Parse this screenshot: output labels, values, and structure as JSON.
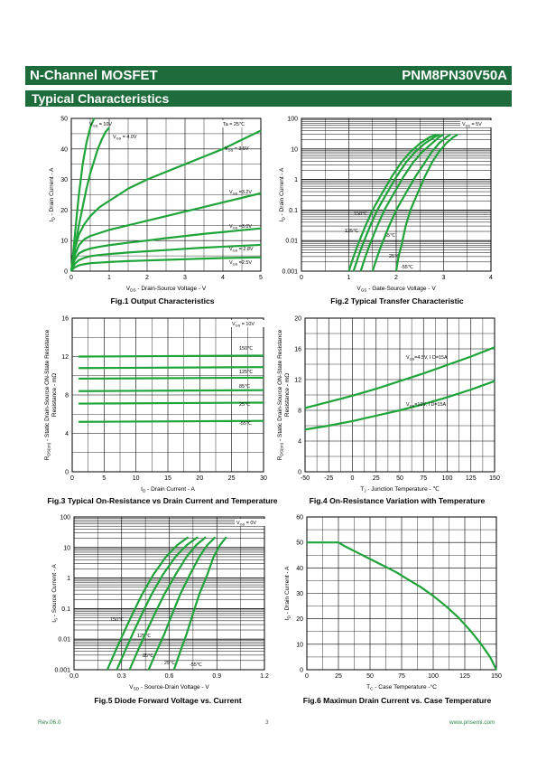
{
  "header": {
    "left": "N-Channel MOSFET",
    "right": "PNM8PN30V50A",
    "section": "Typical Characteristics"
  },
  "footer": {
    "rev": "Rev.06.0",
    "page": "3",
    "url": "www.prisemi.com"
  },
  "colors": {
    "brand": "#1e6b3c",
    "curve": "#1fa43a",
    "footer": "#2f8a4f"
  },
  "chart_data": [
    {
      "id": "fig1",
      "type": "line",
      "caption": "Fig.1 Output Characteristics",
      "xlabel_main": "V",
      "xlabel_sub": "DS",
      "xlabel_rest": " - Drain-Source Voltage - V",
      "ylabel": "I D - Drain Current - A",
      "xlim": [
        0,
        5
      ],
      "ylim": [
        0,
        50
      ],
      "xticks": [
        0,
        1,
        2,
        3,
        4,
        5
      ],
      "yticks": [
        0,
        10,
        20,
        30,
        40,
        50
      ],
      "grid": true,
      "annotations": [
        "Ta = 25℃"
      ],
      "series": [
        {
          "label": "V GS = 10V",
          "x": [
            0,
            0.05,
            0.1,
            0.15,
            0.2,
            0.3,
            0.4,
            0.5,
            0.6
          ],
          "y": [
            0,
            6,
            12.5,
            19,
            25,
            35,
            42,
            47,
            50
          ]
        },
        {
          "label": "V GS = 4.0V",
          "x": [
            0,
            0.1,
            0.2,
            0.3,
            0.4,
            0.5,
            0.6,
            0.7,
            0.8,
            0.9,
            1.0
          ],
          "y": [
            0,
            8,
            15,
            21,
            27,
            32,
            36,
            40,
            43,
            45.5,
            47
          ]
        },
        {
          "label": "V GS = 3.5V",
          "x": [
            0,
            0.05,
            0.1,
            0.2,
            0.35,
            0.5,
            0.75,
            1,
            1.5,
            2,
            2.5,
            3,
            3.5,
            4,
            4.5,
            5
          ],
          "y": [
            0,
            4,
            7.5,
            12,
            15.5,
            18,
            21,
            23,
            27,
            30,
            32.5,
            35,
            37.5,
            40,
            43,
            46
          ]
        },
        {
          "label": "V GS =3.2V",
          "x": [
            0,
            0.05,
            0.1,
            0.2,
            0.35,
            0.5,
            0.75,
            1,
            1.5,
            2,
            2.5,
            3,
            3.5,
            4,
            4.5,
            5
          ],
          "y": [
            0,
            3,
            5.5,
            8.5,
            10.5,
            11.5,
            12.5,
            13.5,
            15,
            16.5,
            18,
            19.5,
            21,
            22.5,
            24,
            25.5
          ]
        },
        {
          "label": "V GS =3.0V",
          "x": [
            0,
            0.05,
            0.1,
            0.2,
            0.35,
            0.5,
            0.75,
            1,
            1.5,
            2,
            2.5,
            3,
            3.5,
            4,
            4.5,
            5
          ],
          "y": [
            0,
            2.5,
            4,
            5.8,
            6.8,
            7.4,
            8,
            8.5,
            9.3,
            10,
            10.8,
            11.5,
            12.2,
            12.8,
            13.4,
            14
          ]
        },
        {
          "label": "V GS = 2.8V",
          "x": [
            0,
            0.05,
            0.1,
            0.2,
            0.35,
            0.5,
            0.75,
            1,
            1.5,
            2,
            2.5,
            3,
            3.5,
            4,
            4.5,
            5
          ],
          "y": [
            0,
            1.5,
            2.5,
            3.6,
            4.4,
            4.9,
            5.3,
            5.6,
            6.1,
            6.5,
            6.9,
            7.3,
            7.7,
            8,
            8.3,
            8.6
          ]
        },
        {
          "label": "V GS =2.5V",
          "x": [
            0,
            0.05,
            0.1,
            0.2,
            0.35,
            0.5,
            0.75,
            1,
            1.5,
            2,
            2.5,
            3,
            3.5,
            4,
            4.5,
            5
          ],
          "y": [
            0,
            0.8,
            1.3,
            1.9,
            2.3,
            2.6,
            2.8,
            3.0,
            3.3,
            3.5,
            3.7,
            3.9,
            4.1,
            4.3,
            4.4,
            4.5
          ]
        }
      ]
    },
    {
      "id": "fig2",
      "type": "line",
      "caption": "Fig.2 Typical Transfer Characteristic",
      "xlabel_main": "V",
      "xlabel_sub": "GS",
      "xlabel_rest": " - Gate-Source Voltage - V",
      "ylabel": "I D - Drain Current - A",
      "xlim": [
        0,
        4
      ],
      "ylim": [
        0.001,
        100
      ],
      "log_y": true,
      "xticks": [
        0,
        1,
        2,
        3,
        4
      ],
      "yticks": [
        0.001,
        0.01,
        0.1,
        1,
        10,
        100
      ],
      "ytick_labels": [
        "0.001",
        "0.01",
        "0.1",
        "1",
        "10",
        "100"
      ],
      "grid": true,
      "annotations": [
        "V DS = 5V"
      ],
      "series": [
        {
          "label": "150℃",
          "x": [
            1.0,
            1.1,
            1.2,
            1.35,
            1.5,
            1.7,
            1.9,
            2.1,
            2.3,
            2.5,
            2.7,
            2.85
          ],
          "y": [
            0.001,
            0.003,
            0.008,
            0.03,
            0.1,
            0.35,
            1.2,
            3.5,
            8,
            15,
            24,
            30
          ]
        },
        {
          "label": "125℃",
          "x": [
            1.1,
            1.2,
            1.3,
            1.45,
            1.6,
            1.8,
            2.0,
            2.2,
            2.4,
            2.6,
            2.8,
            2.92
          ],
          "y": [
            0.001,
            0.003,
            0.008,
            0.03,
            0.1,
            0.35,
            1.2,
            3.5,
            8,
            15,
            24,
            30
          ]
        },
        {
          "label": "85℃",
          "x": [
            1.25,
            1.35,
            1.45,
            1.6,
            1.75,
            1.95,
            2.15,
            2.35,
            2.55,
            2.75,
            2.9,
            3.0
          ],
          "y": [
            0.001,
            0.003,
            0.008,
            0.03,
            0.1,
            0.35,
            1.2,
            3.5,
            8,
            15,
            24,
            30
          ]
        },
        {
          "label": "25℃",
          "x": [
            1.5,
            1.6,
            1.7,
            1.85,
            2.0,
            2.2,
            2.4,
            2.6,
            2.75,
            2.9,
            3.05,
            3.15
          ],
          "y": [
            0.001,
            0.003,
            0.008,
            0.03,
            0.1,
            0.35,
            1.2,
            3.5,
            8,
            15,
            24,
            30
          ]
        },
        {
          "label": "-55℃",
          "x": [
            2.0,
            2.05,
            2.12,
            2.2,
            2.3,
            2.45,
            2.6,
            2.75,
            2.9,
            3.05,
            3.2,
            3.3
          ],
          "y": [
            0.001,
            0.003,
            0.008,
            0.03,
            0.1,
            0.35,
            1.2,
            3.5,
            8,
            15,
            24,
            30
          ]
        }
      ]
    },
    {
      "id": "fig3",
      "type": "line",
      "caption": "Fig.3 Typical On-Resistance  vs Drain Current and Temperature",
      "xlabel_main": "I",
      "xlabel_sub": "D",
      "xlabel_rest": " - Drain Current - A",
      "ylabel": "R DS(on) - Static Drain-Source ON-State Resistance - mΩ",
      "xlim": [
        0,
        30
      ],
      "ylim": [
        0,
        16
      ],
      "xticks": [
        0,
        5,
        10,
        15,
        20,
        25,
        30
      ],
      "yticks": [
        0,
        4,
        8,
        12,
        16
      ],
      "grid": true,
      "annotations": [
        "V GS = 10V"
      ],
      "series": [
        {
          "label": "150℃",
          "x": [
            1,
            30
          ],
          "y": [
            12.0,
            12.1
          ]
        },
        {
          "label": "",
          "x": [
            1,
            30
          ],
          "y": [
            10.8,
            10.9
          ]
        },
        {
          "label": "125℃",
          "x": [
            1,
            30
          ],
          "y": [
            9.7,
            9.8
          ]
        },
        {
          "label": "85℃",
          "x": [
            1,
            30
          ],
          "y": [
            8.4,
            8.5
          ]
        },
        {
          "label": "25℃",
          "x": [
            1,
            30
          ],
          "y": [
            7.1,
            7.2
          ]
        },
        {
          "label": "-55℃",
          "x": [
            1,
            30
          ],
          "y": [
            5.2,
            5.3
          ]
        }
      ]
    },
    {
      "id": "fig4",
      "type": "line",
      "caption": "Fig.4 On-Resistance Variation with Temperature",
      "xlabel_main": "T",
      "xlabel_sub": "J",
      "xlabel_rest": " - Junction Temperature - ℃",
      "ylabel": "R DS(on) - Static Drain-Source ON-State Resistance - mΩ",
      "xlim": [
        -50,
        150
      ],
      "ylim": [
        0,
        20
      ],
      "xticks": [
        -50,
        -25,
        0,
        25,
        50,
        75,
        100,
        125,
        150
      ],
      "yticks": [
        0,
        4,
        8,
        12,
        16,
        20
      ],
      "grid": true,
      "annotations": [],
      "series": [
        {
          "label": "V GS=4.5V, I D=15A",
          "x": [
            -50,
            -25,
            0,
            25,
            50,
            75,
            100,
            125,
            150
          ],
          "y": [
            8.3,
            9.1,
            9.9,
            10.8,
            11.8,
            12.8,
            13.9,
            15.0,
            16.2
          ]
        },
        {
          "label": "V GS=10V, I D=15A",
          "x": [
            -50,
            -25,
            0,
            25,
            50,
            75,
            100,
            125,
            150
          ],
          "y": [
            5.5,
            6.0,
            6.6,
            7.3,
            8.0,
            8.8,
            9.7,
            10.7,
            11.8
          ]
        }
      ]
    },
    {
      "id": "fig5",
      "type": "line",
      "caption": "Fig.5 Diode Forward Voltage vs. Current",
      "xlabel_main": "V",
      "xlabel_sub": "SD",
      "xlabel_rest": " - Source-Drain Voltage - V",
      "ylabel": "I S - Source Current - A",
      "xlim": [
        0,
        1.2
      ],
      "ylim": [
        0.001,
        100
      ],
      "log_y": true,
      "xticks": [
        0,
        0.3,
        0.6,
        0.9,
        1.2
      ],
      "xtick_labels": [
        "0,0",
        "0.3",
        "0.6",
        "0.9",
        "1.2"
      ],
      "yticks": [
        0.001,
        0.01,
        0.1,
        1,
        10,
        100
      ],
      "ytick_labels": [
        "0.001",
        "0.01",
        "0.1",
        "1",
        "10",
        "100"
      ],
      "grid": true,
      "annotations": [
        "V GS = 0V"
      ],
      "series": [
        {
          "label": "150℃",
          "x": [
            0.21,
            0.26,
            0.31,
            0.37,
            0.43,
            0.5,
            0.58,
            0.65,
            0.72
          ],
          "y": [
            0.001,
            0.004,
            0.015,
            0.07,
            0.3,
            1.3,
            5,
            12,
            22
          ]
        },
        {
          "label": "125℃",
          "x": [
            0.27,
            0.32,
            0.37,
            0.43,
            0.49,
            0.56,
            0.64,
            0.71,
            0.78
          ],
          "y": [
            0.001,
            0.004,
            0.015,
            0.07,
            0.3,
            1.3,
            5,
            12,
            22
          ]
        },
        {
          "label": "85℃",
          "x": [
            0.35,
            0.4,
            0.45,
            0.51,
            0.57,
            0.64,
            0.71,
            0.77,
            0.83
          ],
          "y": [
            0.001,
            0.004,
            0.015,
            0.07,
            0.3,
            1.3,
            5,
            12,
            22
          ]
        },
        {
          "label": "25℃",
          "x": [
            0.47,
            0.52,
            0.57,
            0.62,
            0.67,
            0.73,
            0.79,
            0.84,
            0.89
          ],
          "y": [
            0.001,
            0.004,
            0.015,
            0.07,
            0.3,
            1.3,
            5,
            12,
            22
          ]
        },
        {
          "label": "-55℃",
          "x": [
            0.63,
            0.67,
            0.71,
            0.75,
            0.79,
            0.84,
            0.88,
            0.92,
            0.96
          ],
          "y": [
            0.001,
            0.004,
            0.015,
            0.07,
            0.3,
            1.3,
            5,
            12,
            22
          ]
        }
      ]
    },
    {
      "id": "fig6",
      "type": "line",
      "caption": "Fig.6 Maximun Drain Current vs. Case Temperature",
      "xlabel_main": "T",
      "xlabel_sub": "C",
      "xlabel_rest": " - Case Temperature -°C",
      "ylabel": "I D - Drain Current - A",
      "xlim": [
        0,
        150
      ],
      "ylim": [
        0,
        60
      ],
      "xticks": [
        0,
        25,
        50,
        75,
        100,
        125,
        150
      ],
      "yticks": [
        0,
        10,
        20,
        30,
        40,
        50,
        60
      ],
      "grid": true,
      "annotations": [],
      "series": [
        {
          "label": "",
          "x": [
            0,
            25,
            30,
            40,
            50,
            60,
            70,
            80,
            90,
            100,
            110,
            120,
            130,
            138,
            145,
            150
          ],
          "y": [
            50,
            50,
            48.5,
            46,
            43.5,
            41,
            38.5,
            35.5,
            32.5,
            29,
            25,
            20.5,
            15,
            10,
            5,
            0
          ]
        }
      ]
    }
  ]
}
